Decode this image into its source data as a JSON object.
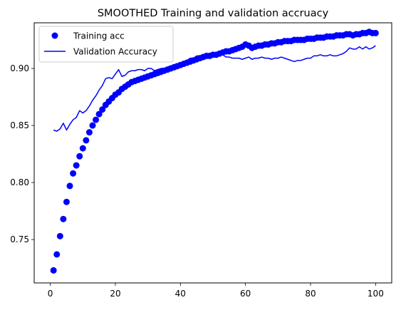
{
  "chart_data": {
    "type": "line",
    "title": "SMOOTHED Training and validation accruacy",
    "xlabel": "",
    "ylabel": "",
    "xlim": [
      -4.95,
      104.95
    ],
    "ylim": [
      0.712,
      0.94
    ],
    "x_ticks": [
      0,
      20,
      40,
      60,
      80,
      100
    ],
    "x_tick_labels": [
      "0",
      "20",
      "40",
      "60",
      "80",
      "100"
    ],
    "y_ticks": [
      0.75,
      0.8,
      0.85,
      0.9
    ],
    "y_tick_labels": [
      "0.75",
      "0.80",
      "0.85",
      "0.90"
    ],
    "grid": false,
    "legend_position": "top-left",
    "color": "#0000ff",
    "series": [
      {
        "name": "Training acc",
        "style": "markers",
        "x": [
          1,
          2,
          3,
          4,
          5,
          6,
          7,
          8,
          9,
          10,
          11,
          12,
          13,
          14,
          15,
          16,
          17,
          18,
          19,
          20,
          21,
          22,
          23,
          24,
          25,
          26,
          27,
          28,
          29,
          30,
          31,
          32,
          33,
          34,
          35,
          36,
          37,
          38,
          39,
          40,
          41,
          42,
          43,
          44,
          45,
          46,
          47,
          48,
          49,
          50,
          51,
          52,
          53,
          54,
          55,
          56,
          57,
          58,
          59,
          60,
          61,
          62,
          63,
          64,
          65,
          66,
          67,
          68,
          69,
          70,
          71,
          72,
          73,
          74,
          75,
          76,
          77,
          78,
          79,
          80,
          81,
          82,
          83,
          84,
          85,
          86,
          87,
          88,
          89,
          90,
          91,
          92,
          93,
          94,
          95,
          96,
          97,
          98,
          99,
          100
        ],
        "values": [
          0.723,
          0.737,
          0.753,
          0.768,
          0.783,
          0.797,
          0.808,
          0.815,
          0.823,
          0.83,
          0.837,
          0.844,
          0.85,
          0.855,
          0.86,
          0.864,
          0.868,
          0.871,
          0.874,
          0.877,
          0.879,
          0.882,
          0.884,
          0.886,
          0.888,
          0.889,
          0.89,
          0.891,
          0.892,
          0.893,
          0.894,
          0.895,
          0.896,
          0.897,
          0.898,
          0.899,
          0.9,
          0.901,
          0.902,
          0.903,
          0.904,
          0.905,
          0.906,
          0.907,
          0.908,
          0.909,
          0.91,
          0.911,
          0.911,
          0.912,
          0.912,
          0.913,
          0.914,
          0.915,
          0.915,
          0.916,
          0.917,
          0.918,
          0.919,
          0.921,
          0.92,
          0.918,
          0.919,
          0.92,
          0.92,
          0.921,
          0.921,
          0.922,
          0.922,
          0.923,
          0.923,
          0.924,
          0.924,
          0.924,
          0.925,
          0.925,
          0.925,
          0.925,
          0.926,
          0.926,
          0.926,
          0.927,
          0.927,
          0.927,
          0.928,
          0.928,
          0.928,
          0.929,
          0.929,
          0.929,
          0.93,
          0.93,
          0.929,
          0.93,
          0.93,
          0.931,
          0.931,
          0.932,
          0.931,
          0.931
        ]
      },
      {
        "name": "Validation Accuracy",
        "style": "line",
        "x": [
          1,
          2,
          3,
          4,
          5,
          6,
          7,
          8,
          9,
          10,
          11,
          12,
          13,
          14,
          15,
          16,
          17,
          18,
          19,
          20,
          21,
          22,
          23,
          24,
          25,
          26,
          27,
          28,
          29,
          30,
          31,
          32,
          33,
          34,
          35,
          36,
          37,
          38,
          39,
          40,
          41,
          42,
          43,
          44,
          45,
          46,
          47,
          48,
          49,
          50,
          51,
          52,
          53,
          54,
          55,
          56,
          57,
          58,
          59,
          60,
          61,
          62,
          63,
          64,
          65,
          66,
          67,
          68,
          69,
          70,
          71,
          72,
          73,
          74,
          75,
          76,
          77,
          78,
          79,
          80,
          81,
          82,
          83,
          84,
          85,
          86,
          87,
          88,
          89,
          90,
          91,
          92,
          93,
          94,
          95,
          96,
          97,
          98,
          99,
          100
        ],
        "values": [
          0.846,
          0.845,
          0.847,
          0.852,
          0.846,
          0.851,
          0.855,
          0.857,
          0.863,
          0.861,
          0.863,
          0.867,
          0.872,
          0.876,
          0.881,
          0.885,
          0.891,
          0.892,
          0.891,
          0.895,
          0.899,
          0.893,
          0.894,
          0.897,
          0.898,
          0.898,
          0.899,
          0.899,
          0.898,
          0.9,
          0.9,
          0.898,
          0.899,
          0.9,
          0.9,
          0.901,
          0.902,
          0.903,
          0.903,
          0.905,
          0.906,
          0.907,
          0.909,
          0.909,
          0.911,
          0.911,
          0.912,
          0.912,
          0.911,
          0.912,
          0.912,
          0.914,
          0.912,
          0.91,
          0.91,
          0.909,
          0.909,
          0.909,
          0.908,
          0.909,
          0.91,
          0.908,
          0.909,
          0.909,
          0.91,
          0.909,
          0.909,
          0.908,
          0.909,
          0.909,
          0.91,
          0.909,
          0.908,
          0.907,
          0.906,
          0.907,
          0.907,
          0.908,
          0.909,
          0.909,
          0.911,
          0.911,
          0.912,
          0.911,
          0.911,
          0.912,
          0.911,
          0.911,
          0.912,
          0.913,
          0.915,
          0.918,
          0.917,
          0.917,
          0.919,
          0.917,
          0.919,
          0.917,
          0.918,
          0.92
        ]
      }
    ]
  }
}
